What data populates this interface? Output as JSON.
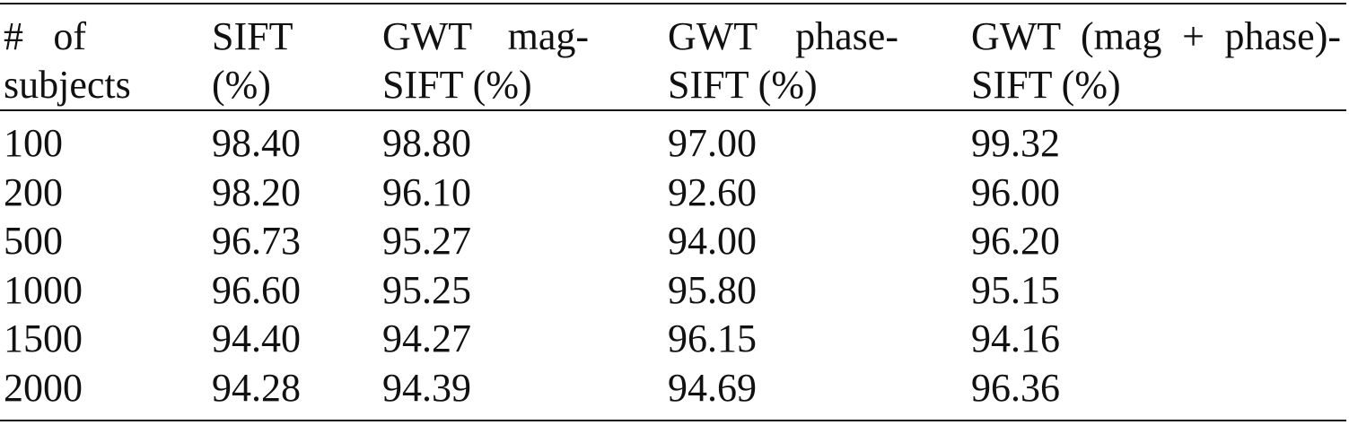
{
  "table": {
    "headers": [
      [
        "# of",
        "subjects"
      ],
      [
        "SIFT",
        "(%)"
      ],
      [
        "GWT mag-",
        "SIFT (%)"
      ],
      [
        "GWT phase-",
        "SIFT (%)"
      ],
      [
        "GWT (mag + phase)-",
        "SIFT (%)"
      ]
    ],
    "rows": [
      [
        "100",
        "98.40",
        "98.80",
        "97.00",
        "99.32"
      ],
      [
        "200",
        "98.20",
        "96.10",
        "92.60",
        "96.00"
      ],
      [
        "500",
        "96.73",
        "95.27",
        "94.00",
        "96.20"
      ],
      [
        "1000",
        "96.60",
        "95.25",
        "95.80",
        "95.15"
      ],
      [
        "1500",
        "94.40",
        "94.27",
        "96.15",
        "94.16"
      ],
      [
        "2000",
        "94.28",
        "94.39",
        "94.69",
        "96.36"
      ]
    ]
  }
}
